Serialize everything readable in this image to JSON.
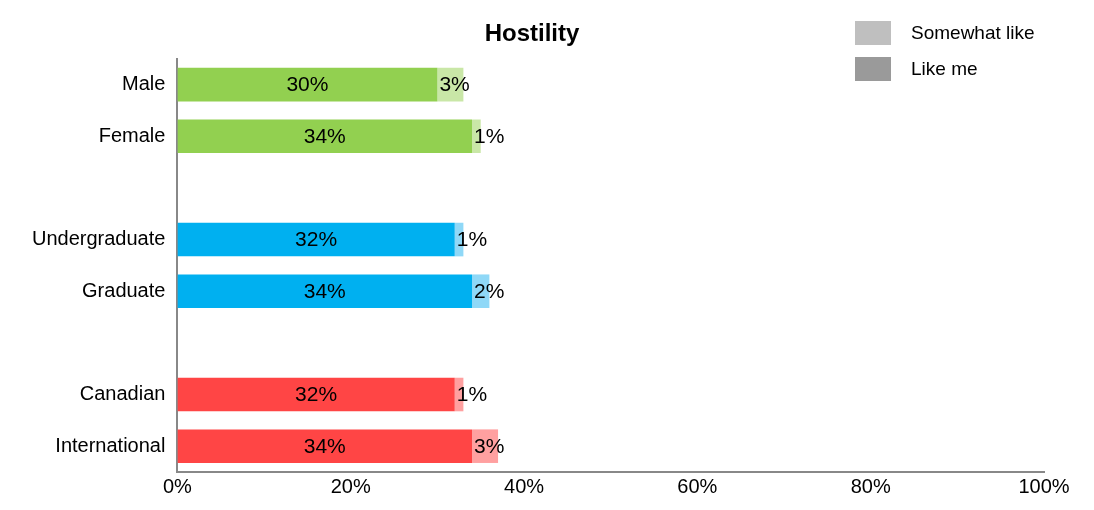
{
  "chart_data": {
    "type": "bar",
    "orientation": "horizontal",
    "stacked": true,
    "title": "Hostility",
    "categories": [
      "Male",
      "Female",
      null,
      "Undergraduate",
      "Graduate",
      null,
      "Canadian",
      "International"
    ],
    "series": [
      {
        "name": "Somewhat like",
        "color": "#bfbfbf",
        "colors": [
          "#92d050",
          "#92d050",
          null,
          "#00b0f0",
          "#00b0f0",
          null,
          "#ff4545",
          "#ff4545"
        ],
        "values": [
          30,
          34,
          null,
          32,
          34,
          null,
          32,
          34
        ],
        "value_labels": [
          "30%",
          "34%",
          null,
          "32%",
          "34%",
          null,
          "32%",
          "34%"
        ]
      },
      {
        "name": "Like me",
        "color": "#9a9a9a",
        "colors": [
          "#c9e7a7",
          "#c9e7a7",
          null,
          "#8fd8f7",
          "#8fd8f7",
          null,
          "#ffa0a0",
          "#ffa0a0"
        ],
        "values": [
          3,
          1,
          null,
          1,
          2,
          null,
          1,
          3
        ],
        "value_labels": [
          "3%",
          "1%",
          null,
          "1%",
          "2%",
          null,
          "1%",
          "3%"
        ]
      }
    ],
    "xlim": [
      0,
      100
    ],
    "xticks": [
      {
        "value": 0,
        "label": "0%"
      },
      {
        "value": 20,
        "label": "20%"
      },
      {
        "value": 40,
        "label": "40%"
      },
      {
        "value": 60,
        "label": "60%"
      },
      {
        "value": 80,
        "label": "80%"
      },
      {
        "value": 100,
        "label": "100%"
      }
    ],
    "grid": false,
    "legend": "top right"
  }
}
